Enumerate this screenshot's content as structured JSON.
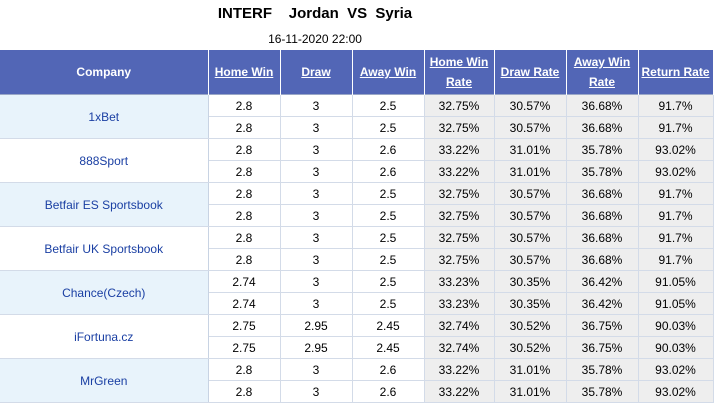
{
  "header": {
    "match": "INTERF    Jordan  VS  Syria",
    "datetime": "16-11-2020 22:00"
  },
  "columns": {
    "company": "Company",
    "home_win": "Home Win",
    "draw": "Draw",
    "away_win": "Away Win",
    "home_win_rate": "Home Win Rate",
    "draw_rate": "Draw Rate",
    "away_win_rate": "Away Win Rate",
    "return_rate": "Return Rate"
  },
  "rows": [
    {
      "company": "1xBet",
      "r1": [
        "2.8",
        "3",
        "2.5",
        "32.75%",
        "30.57%",
        "36.68%",
        "91.7%"
      ],
      "r2": [
        "2.8",
        "3",
        "2.5",
        "32.75%",
        "30.57%",
        "36.68%",
        "91.7%"
      ]
    },
    {
      "company": "888Sport",
      "r1": [
        "2.8",
        "3",
        "2.6",
        "33.22%",
        "31.01%",
        "35.78%",
        "93.02%"
      ],
      "r2": [
        "2.8",
        "3",
        "2.6",
        "33.22%",
        "31.01%",
        "35.78%",
        "93.02%"
      ]
    },
    {
      "company": "Betfair ES Sportsbook",
      "r1": [
        "2.8",
        "3",
        "2.5",
        "32.75%",
        "30.57%",
        "36.68%",
        "91.7%"
      ],
      "r2": [
        "2.8",
        "3",
        "2.5",
        "32.75%",
        "30.57%",
        "36.68%",
        "91.7%"
      ]
    },
    {
      "company": "Betfair UK Sportsbook",
      "r1": [
        "2.8",
        "3",
        "2.5",
        "32.75%",
        "30.57%",
        "36.68%",
        "91.7%"
      ],
      "r2": [
        "2.8",
        "3",
        "2.5",
        "32.75%",
        "30.57%",
        "36.68%",
        "91.7%"
      ]
    },
    {
      "company": "Chance(Czech)",
      "r1": [
        "2.74",
        "3",
        "2.5",
        "33.23%",
        "30.35%",
        "36.42%",
        "91.05%"
      ],
      "r2": [
        "2.74",
        "3",
        "2.5",
        "33.23%",
        "30.35%",
        "36.42%",
        "91.05%"
      ]
    },
    {
      "company": "iFortuna.cz",
      "r1": [
        "2.75",
        "2.95",
        "2.45",
        "32.74%",
        "30.52%",
        "36.75%",
        "90.03%"
      ],
      "r2": [
        "2.75",
        "2.95",
        "2.45",
        "32.74%",
        "30.52%",
        "36.75%",
        "90.03%"
      ]
    },
    {
      "company": "MrGreen",
      "r1": [
        "2.8",
        "3",
        "2.6",
        "33.22%",
        "31.01%",
        "35.78%",
        "93.02%"
      ],
      "r2": [
        "2.8",
        "3",
        "2.6",
        "33.22%",
        "31.01%",
        "35.78%",
        "93.02%"
      ]
    }
  ],
  "colors": {
    "header_bg": "#5266b6",
    "company_bg": "#e8f3fb",
    "company_text": "#1a3fa3",
    "rate_bg": "#eeeeee"
  }
}
